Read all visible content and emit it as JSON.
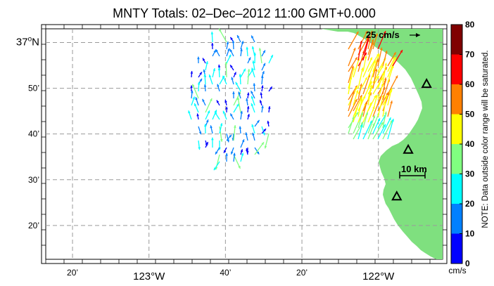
{
  "title": "MNTY Totals: 02–Dec–2012 11:00 GMT+0.000",
  "scale_arrow_label": "25 cm/s",
  "scale_bar_label": "10 km",
  "lat_labels": [
    {
      "lat": 37.0,
      "deg": "37",
      "unit": "o",
      "hemi": "N",
      "min": ""
    },
    {
      "lat": 36.8333,
      "deg": "",
      "unit": "",
      "hemi": "",
      "min": "50’"
    },
    {
      "lat": 36.6667,
      "deg": "",
      "unit": "",
      "hemi": "",
      "min": "40’"
    },
    {
      "lat": 36.5,
      "deg": "",
      "unit": "",
      "hemi": "",
      "min": "30’"
    },
    {
      "lat": 36.3333,
      "deg": "",
      "unit": "",
      "hemi": "",
      "min": "20’"
    }
  ],
  "lon_labels": [
    {
      "lon": -123.3333,
      "text": "20’",
      "major": false
    },
    {
      "lon": -123.0,
      "text": "123°W",
      "major": true
    },
    {
      "lon": -122.6667,
      "text": "40’",
      "major": false
    },
    {
      "lon": -122.3333,
      "text": "20’",
      "major": false
    },
    {
      "lon": -122.0,
      "text": "122°W",
      "major": true
    }
  ],
  "map_extent": {
    "lon_min": -123.45,
    "lon_max": -121.72,
    "lat_min": 36.21,
    "lat_max": 37.05
  },
  "colorbar": {
    "ticks": [
      "0",
      "10",
      "20",
      "30",
      "40",
      "50",
      "60",
      "70",
      "80"
    ],
    "unit": "cm/s",
    "note": "NOTE: Data outside color range will be saturated.",
    "colors": [
      "#0000ff",
      "#0080ff",
      "#00ffff",
      "#80ff80",
      "#ffff00",
      "#ff8000",
      "#ff0000",
      "#800000"
    ],
    "min": 0,
    "max": 80
  },
  "land_color": "#7fe07f",
  "stations": [
    {
      "name": "station-1",
      "lon": -121.79,
      "lat": 36.85
    },
    {
      "name": "station-2",
      "lon": -121.87,
      "lat": 36.61
    },
    {
      "name": "station-3",
      "lon": -121.92,
      "lat": 36.44
    }
  ]
}
